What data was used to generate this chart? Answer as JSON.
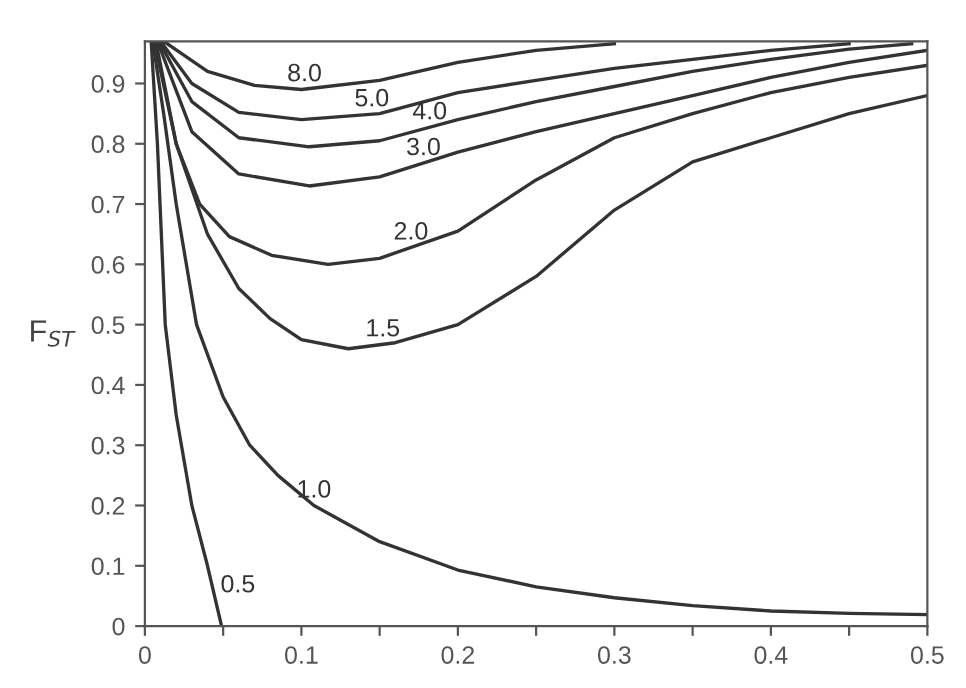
{
  "chart_data": {
    "type": "line",
    "ylabel": "F$_{ST}$",
    "xlim": [
      0,
      0.5
    ],
    "ylim": [
      0,
      0.97
    ],
    "xticks": [
      0,
      {
        "value": 0.05,
        "label": null
      },
      0.1,
      {
        "value": 0.15,
        "label": null
      },
      0.2,
      {
        "value": 0.25,
        "label": null
      },
      0.3,
      {
        "value": 0.35,
        "label": null
      },
      0.4,
      {
        "value": 0.45,
        "label": null
      },
      0.5
    ],
    "yticks": [
      0,
      0.1,
      0.2,
      0.3,
      0.4,
      0.5,
      0.6,
      0.7,
      0.8,
      0.9
    ],
    "grid": false,
    "marker": "none",
    "line_style": "solid",
    "series": [
      {
        "name": "0.5",
        "color": "#333333",
        "x": [
          0.004,
          0.008,
          0.013,
          0.02,
          0.03,
          0.04,
          0.049
        ],
        "values": [
          0.97,
          0.8,
          0.5,
          0.35,
          0.2,
          0.1,
          0
        ]
      },
      {
        "name": "1.0",
        "color": "#333333",
        "x": [
          0.005,
          0.012,
          0.02,
          0.033,
          0.05,
          0.067,
          0.085,
          0.108,
          0.15,
          0.2,
          0.25,
          0.3,
          0.35,
          0.4,
          0.45,
          0.5
        ],
        "values": [
          0.97,
          0.85,
          0.7,
          0.5,
          0.38,
          0.3,
          0.25,
          0.2,
          0.14,
          0.093,
          0.065,
          0.047,
          0.034,
          0.025,
          0.021,
          0.019
        ]
      },
      {
        "name": "1.5",
        "color": "#333333",
        "x": [
          0.006,
          0.02,
          0.04,
          0.06,
          0.08,
          0.1,
          0.13,
          0.16,
          0.2,
          0.25,
          0.3,
          0.35,
          0.4,
          0.45,
          0.5
        ],
        "values": [
          0.97,
          0.8,
          0.65,
          0.56,
          0.51,
          0.475,
          0.46,
          0.47,
          0.5,
          0.58,
          0.69,
          0.77,
          0.81,
          0.85,
          0.88
        ]
      },
      {
        "name": "2.0",
        "color": "#333333",
        "x": [
          0.007,
          0.02,
          0.035,
          0.054,
          0.081,
          0.117,
          0.15,
          0.2,
          0.25,
          0.3,
          0.35,
          0.4,
          0.45,
          0.5
        ],
        "values": [
          0.97,
          0.8,
          0.7,
          0.646,
          0.615,
          0.6,
          0.61,
          0.655,
          0.74,
          0.81,
          0.85,
          0.885,
          0.91,
          0.93
        ]
      },
      {
        "name": "3.0",
        "color": "#333333",
        "x": [
          0.008,
          0.03,
          0.06,
          0.105,
          0.15,
          0.2,
          0.25,
          0.3,
          0.35,
          0.4,
          0.45,
          0.5
        ],
        "values": [
          0.97,
          0.82,
          0.75,
          0.73,
          0.745,
          0.786,
          0.82,
          0.85,
          0.88,
          0.91,
          0.935,
          0.955
        ]
      },
      {
        "name": "4.0",
        "color": "#333333",
        "x": [
          0.009,
          0.03,
          0.06,
          0.105,
          0.15,
          0.2,
          0.25,
          0.3,
          0.35,
          0.4,
          0.45,
          0.49
        ],
        "values": [
          0.97,
          0.87,
          0.81,
          0.795,
          0.805,
          0.84,
          0.87,
          0.895,
          0.92,
          0.94,
          0.957,
          0.966
        ]
      },
      {
        "name": "5.0",
        "color": "#333333",
        "x": [
          0.01,
          0.03,
          0.06,
          0.1,
          0.15,
          0.2,
          0.25,
          0.3,
          0.35,
          0.4,
          0.45
        ],
        "values": [
          0.97,
          0.9,
          0.852,
          0.84,
          0.85,
          0.885,
          0.905,
          0.925,
          0.94,
          0.955,
          0.966
        ]
      },
      {
        "name": "8.0",
        "color": "#333333",
        "x": [
          0.012,
          0.04,
          0.07,
          0.1,
          0.15,
          0.2,
          0.25,
          0.3
        ],
        "values": [
          0.97,
          0.92,
          0.897,
          0.89,
          0.905,
          0.935,
          0.955,
          0.966
        ]
      }
    ]
  }
}
